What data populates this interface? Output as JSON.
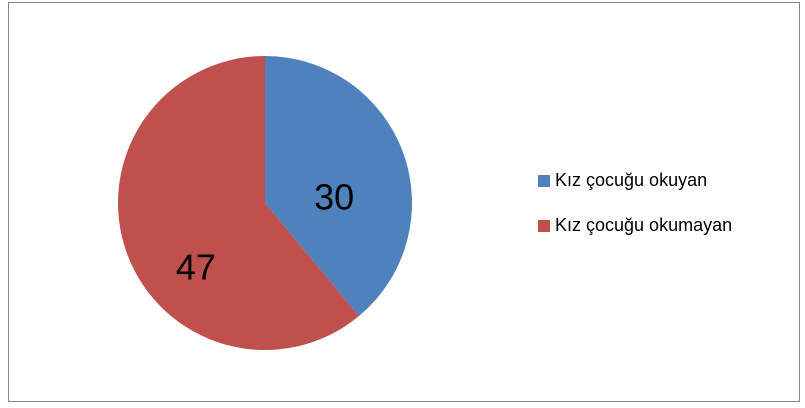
{
  "chart_data": {
    "type": "pie",
    "categories": [
      "Kız çocuğu okuyan",
      "Kız çocuğu okumayan"
    ],
    "values": [
      30,
      47
    ],
    "colors": [
      "#4f81bd",
      "#c0504d"
    ],
    "legend": "right"
  }
}
